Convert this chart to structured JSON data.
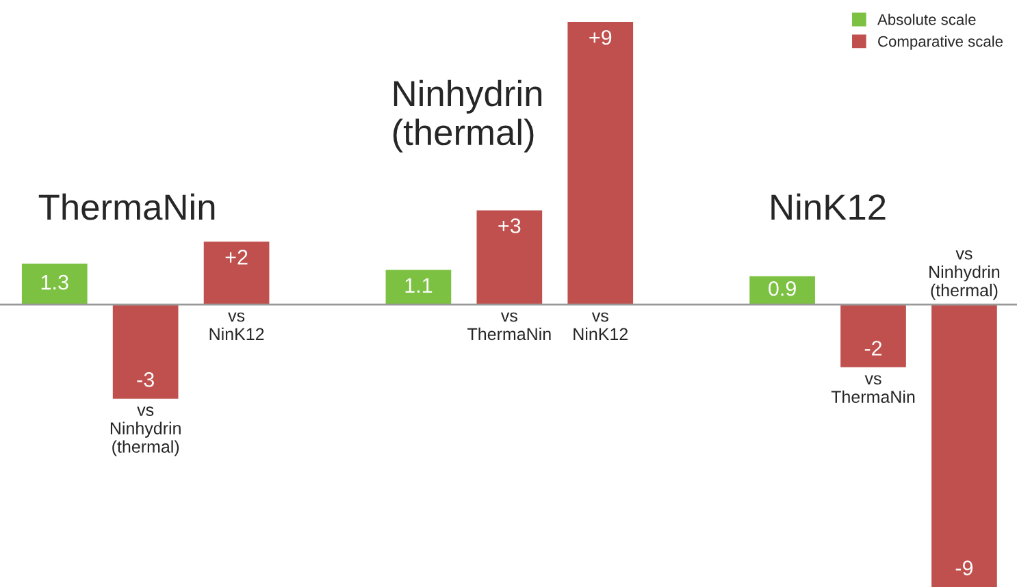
{
  "chart_data": {
    "type": "bar",
    "categories": [
      null,
      "vs\nNinhydrin\n(thermal)",
      "vs\nNinK12",
      null,
      null,
      "vs\nThermaNin",
      "vs\nNinK12",
      null,
      null,
      "vs\nThermaNin",
      "vs\nNinhydrin\n(thermal)"
    ],
    "series": [
      {
        "name": "Absolute scale",
        "color": "#7cc142",
        "values": [
          1.3,
          null,
          null,
          null,
          1.1,
          null,
          null,
          null,
          0.9,
          null,
          null
        ],
        "value_labels": [
          "1.3",
          null,
          null,
          null,
          "1.1",
          null,
          null,
          null,
          "0.9",
          null,
          null
        ]
      },
      {
        "name": "Comparative scale",
        "color": "#c0504d",
        "values": [
          null,
          -3,
          2,
          null,
          null,
          3,
          9,
          null,
          null,
          -2,
          -9
        ],
        "value_labels": [
          null,
          "-3",
          "+2",
          null,
          null,
          "+3",
          "+9",
          null,
          null,
          "-2",
          "-9"
        ]
      }
    ],
    "annotations": [
      "ThermaNin",
      "Ninhydrin\n(thermal)",
      "NinK12"
    ],
    "ylim": [
      -9,
      9.7
    ],
    "legend": "top right"
  }
}
